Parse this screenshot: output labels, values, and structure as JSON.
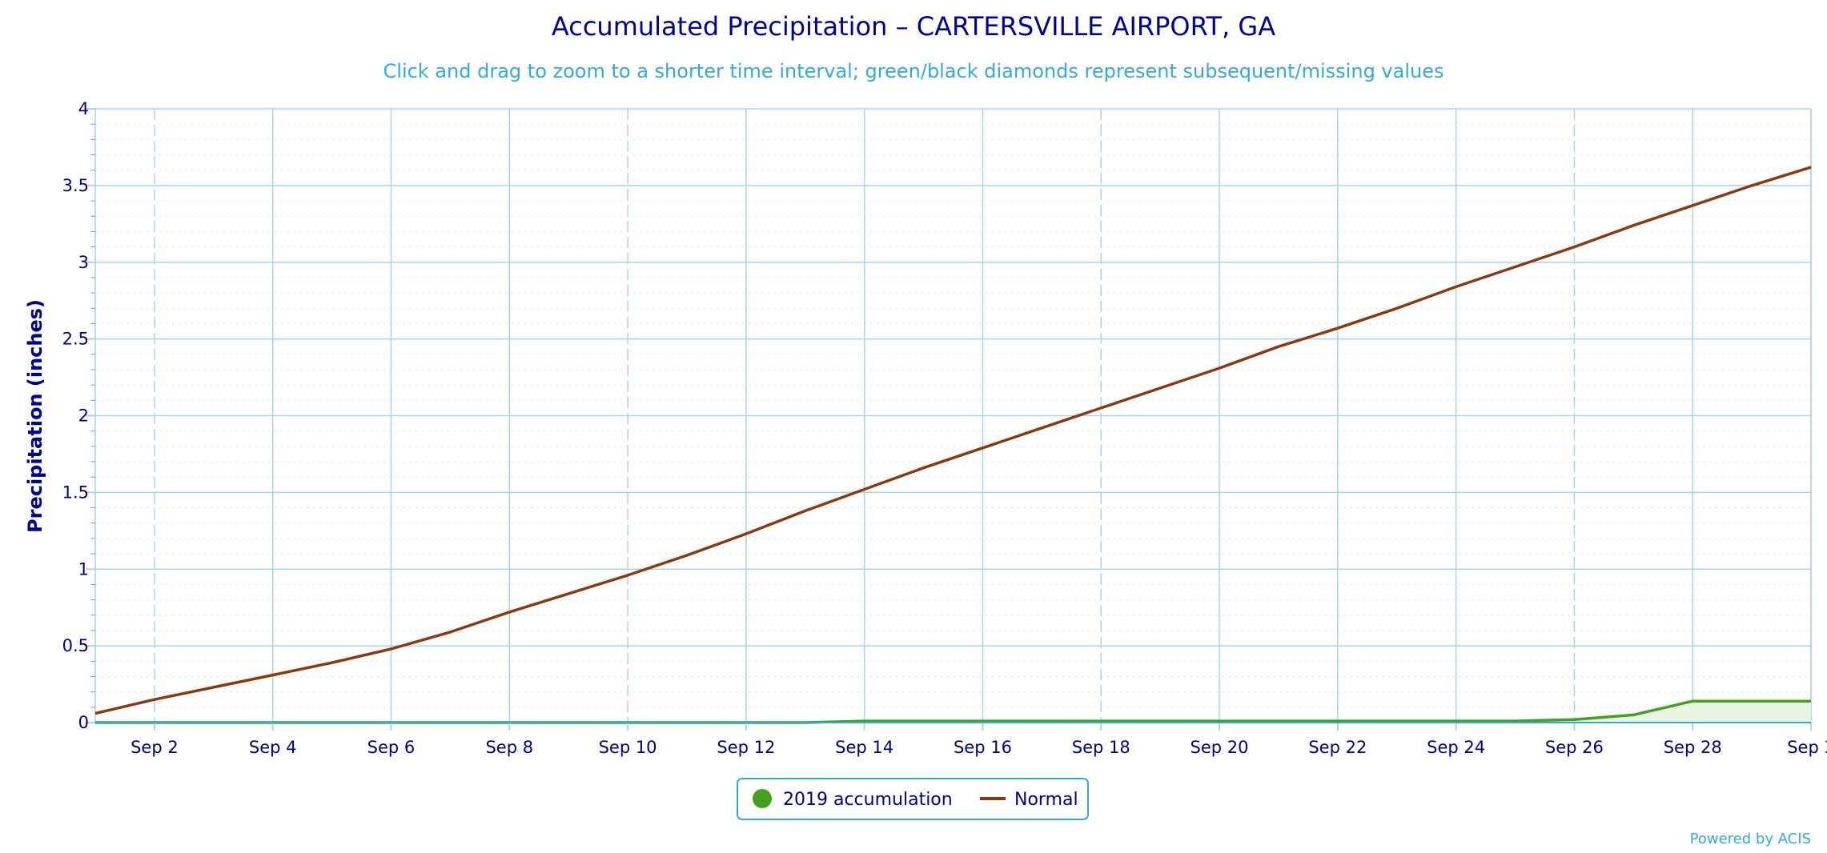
{
  "chart_data": {
    "type": "line",
    "title": "Accumulated Precipitation – CARTERSVILLE AIRPORT, GA",
    "subtitle": "Click and drag to zoom to a shorter time interval; green/black diamonds represent subsequent/missing values",
    "ylabel": "Precipitation (inches)",
    "xlabel": "",
    "ylim": [
      0,
      4
    ],
    "xlim": [
      1,
      30
    ],
    "yticks": [
      0,
      0.5,
      1,
      1.5,
      2,
      2.5,
      3,
      3.5,
      4
    ],
    "ytick_labels": [
      "0",
      "0.5",
      "1",
      "1.5",
      "2",
      "2.5",
      "3",
      "3.5",
      "4"
    ],
    "xticks": [
      2,
      4,
      6,
      8,
      10,
      12,
      14,
      16,
      18,
      20,
      22,
      24,
      26,
      28,
      30
    ],
    "xtick_labels": [
      "Sep 2",
      "Sep 4",
      "Sep 6",
      "Sep 8",
      "Sep 10",
      "Sep 12",
      "Sep 14",
      "Sep 16",
      "Sep 18",
      "Sep 20",
      "Sep 22",
      "Sep 24",
      "Sep 26",
      "Sep 28",
      "Sep 3"
    ],
    "grid": true,
    "legend_position": "bottom-center",
    "x": [
      1,
      2,
      3,
      4,
      5,
      6,
      7,
      8,
      9,
      10,
      11,
      12,
      13,
      14,
      15,
      16,
      17,
      18,
      19,
      20,
      21,
      22,
      23,
      24,
      25,
      26,
      27,
      28,
      29,
      30
    ],
    "series": [
      {
        "name": "2019 accumulation",
        "style": "area",
        "color": "#44a01e",
        "fill": "#e9f4e2",
        "values": [
          0,
          0,
          0,
          0,
          0,
          0,
          0,
          0,
          0,
          0,
          0,
          0,
          0,
          0.01,
          0.01,
          0.01,
          0.01,
          0.01,
          0.01,
          0.01,
          0.01,
          0.01,
          0.01,
          0.01,
          0.01,
          0.02,
          0.05,
          0.14,
          0.14,
          0.14
        ]
      },
      {
        "name": "Normal",
        "style": "line",
        "color": "#8b3a10",
        "values": [
          0.06,
          0.15,
          0.23,
          0.31,
          0.39,
          0.48,
          0.59,
          0.72,
          0.84,
          0.96,
          1.09,
          1.23,
          1.38,
          1.52,
          1.66,
          1.79,
          1.92,
          2.05,
          2.18,
          2.31,
          2.45,
          2.57,
          2.7,
          2.84,
          2.97,
          3.1,
          3.24,
          3.37,
          3.5,
          3.62
        ]
      }
    ]
  },
  "colors": {
    "title": "#000099",
    "subtitle": "#33aadd",
    "grid": "#a9d3ea",
    "minor_grid": "#dddddd",
    "axis_line": "#33aadd",
    "legend_border": "#33aadd",
    "tick_text": "#000080"
  },
  "legend": {
    "items": [
      {
        "label": "2019 accumulation",
        "color": "#44a01e",
        "symbol": "circle-icon"
      },
      {
        "label": "Normal",
        "color": "#8b3a10",
        "symbol": "line-icon"
      }
    ]
  },
  "credits": "Powered by ACIS"
}
